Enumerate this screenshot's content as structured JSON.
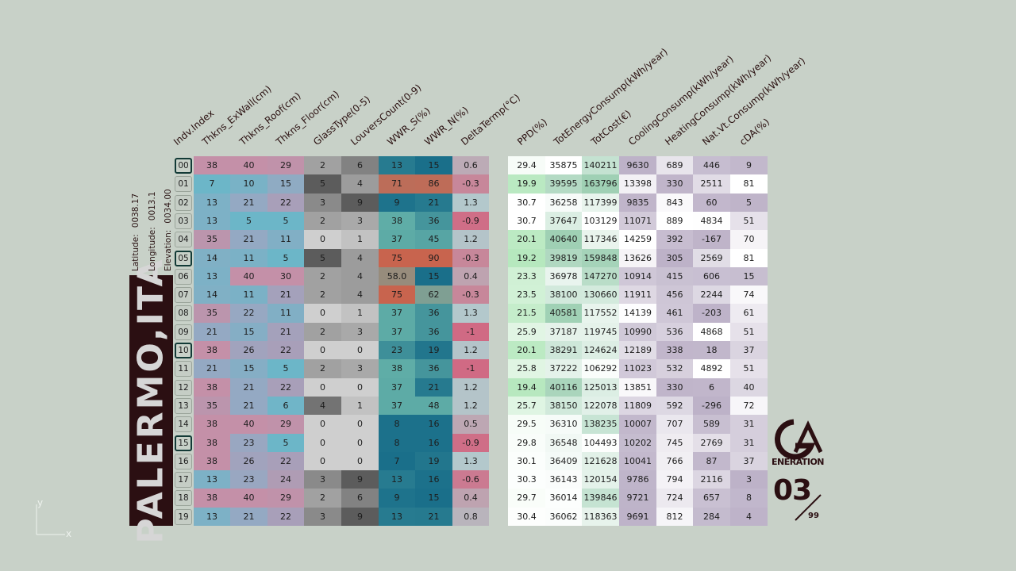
{
  "location": {
    "city": "PALERMO,ITA",
    "latitude_label": "Latitude:",
    "latitude": "0038.17",
    "longitude_label": "Longitude:",
    "longitude": "0013.1",
    "elevation_label": "Elevation:",
    "elevation": "0034.00"
  },
  "branding": {
    "logo_text": "ENERATION",
    "generation": "03",
    "generation_total": "99"
  },
  "axes_icon": {
    "x": "x",
    "y": "y"
  },
  "chart_data": {
    "type": "table",
    "columns": [
      "Indv.Index",
      "Thkns_ExWall(cm)",
      "Thkns_Roof(cm)",
      "Thkns_Floor(cm)",
      "GlassType(0-5)",
      "LouversCount(0-9)",
      "WWR_S(%)",
      "WWR_N(%)",
      "DeltaTermp(°C)",
      "PPD(%)",
      "TotEnergyConsump(kWh/year)",
      "TotCost(€)",
      "CoolingConsump(kWh/year)",
      "HeatingConsump(kWh/year)",
      "Nat.Vt.Consump(kWh/year)",
      "cDA(%)"
    ],
    "selected_rows": [
      "00",
      "05",
      "10",
      "15"
    ],
    "rows": [
      [
        "00",
        "38",
        "40",
        "29",
        "2",
        "6",
        "13",
        "15",
        "0.6",
        "29.4",
        "35875",
        "140211",
        "9630",
        "689",
        "446",
        "9"
      ],
      [
        "01",
        "7",
        "10",
        "15",
        "5",
        "4",
        "71",
        "86",
        "-0.3",
        "19.9",
        "39595",
        "163796",
        "13398",
        "330",
        "2511",
        "81"
      ],
      [
        "02",
        "13",
        "21",
        "22",
        "3",
        "9",
        "9",
        "21",
        "1.3",
        "30.7",
        "36258",
        "117399",
        "9835",
        "843",
        "60",
        "5"
      ],
      [
        "03",
        "13",
        "5",
        "5",
        "2",
        "3",
        "38",
        "36",
        "-0.9",
        "30.7",
        "37647",
        "103129",
        "11071",
        "889",
        "4834",
        "51"
      ],
      [
        "04",
        "35",
        "21",
        "11",
        "0",
        "1",
        "37",
        "45",
        "1.2",
        "20.1",
        "40640",
        "117346",
        "14259",
        "392",
        "-167",
        "70"
      ],
      [
        "05",
        "14",
        "11",
        "5",
        "5",
        "4",
        "75",
        "90",
        "-0.3",
        "19.2",
        "39819",
        "159848",
        "13626",
        "305",
        "2569",
        "81"
      ],
      [
        "06",
        "13",
        "40",
        "30",
        "2",
        "4",
        "58.0",
        "15",
        "0.4",
        "23.3",
        "36978",
        "147270",
        "10914",
        "415",
        "606",
        "15"
      ],
      [
        "07",
        "14",
        "11",
        "21",
        "2",
        "4",
        "75",
        "62",
        "-0.3",
        "23.5",
        "38100",
        "130660",
        "11911",
        "456",
        "2244",
        "74"
      ],
      [
        "08",
        "35",
        "22",
        "11",
        "0",
        "1",
        "37",
        "36",
        "1.3",
        "21.5",
        "40581",
        "117552",
        "14139",
        "461",
        "-203",
        "61"
      ],
      [
        "09",
        "21",
        "15",
        "21",
        "2",
        "3",
        "37",
        "36",
        "-1",
        "25.9",
        "37187",
        "119745",
        "10990",
        "536",
        "4868",
        "51"
      ],
      [
        "10",
        "38",
        "26",
        "22",
        "0",
        "0",
        "23",
        "19",
        "1.2",
        "20.1",
        "38291",
        "124624",
        "12189",
        "338",
        "18",
        "37"
      ],
      [
        "11",
        "21",
        "15",
        "5",
        "2",
        "3",
        "38",
        "36",
        "-1",
        "25.8",
        "37222",
        "106292",
        "11023",
        "532",
        "4892",
        "51"
      ],
      [
        "12",
        "38",
        "21",
        "22",
        "0",
        "0",
        "37",
        "21",
        "1.2",
        "19.4",
        "40116",
        "125013",
        "13851",
        "330",
        "6",
        "40"
      ],
      [
        "13",
        "35",
        "21",
        "6",
        "4",
        "1",
        "37",
        "48",
        "1.2",
        "25.7",
        "38150",
        "122078",
        "11809",
        "592",
        "-296",
        "72"
      ],
      [
        "14",
        "38",
        "40",
        "29",
        "0",
        "0",
        "8",
        "16",
        "0.5",
        "29.5",
        "36310",
        "138235",
        "10007",
        "707",
        "589",
        "31"
      ],
      [
        "15",
        "38",
        "23",
        "5",
        "0",
        "0",
        "8",
        "16",
        "-0.9",
        "29.8",
        "36548",
        "104493",
        "10202",
        "745",
        "2769",
        "31"
      ],
      [
        "16",
        "38",
        "26",
        "22",
        "0",
        "0",
        "7",
        "19",
        "1.3",
        "30.1",
        "36409",
        "121628",
        "10041",
        "766",
        "87",
        "37"
      ],
      [
        "17",
        "13",
        "23",
        "24",
        "3",
        "9",
        "13",
        "16",
        "-0.6",
        "30.3",
        "36143",
        "120154",
        "9786",
        "794",
        "2116",
        "3"
      ],
      [
        "18",
        "38",
        "40",
        "29",
        "2",
        "6",
        "9",
        "15",
        "0.4",
        "29.7",
        "36014",
        "139846",
        "9721",
        "724",
        "657",
        "8"
      ],
      [
        "19",
        "13",
        "21",
        "22",
        "3",
        "9",
        "13",
        "21",
        "0.8",
        "30.4",
        "36062",
        "118363",
        "9691",
        "812",
        "284",
        "4"
      ]
    ],
    "colors": {
      "thickness_high": "#c490a8",
      "thickness_mid": "#98a8c2",
      "thickness_low": "#6cb6c8",
      "glass_dark": "#5c5c5c",
      "glass_light": "#cfcfcf",
      "wwr_low": "#1a6f8a",
      "wwr_mid": "#66b3aa",
      "wwr_high": "#c8644e",
      "delta_neg": "#d06a84",
      "delta_pos": "#b3c8cc",
      "ppd_low": "#b6e8be",
      "ppd_high": "#ffffff",
      "energy_low": "#ffffff",
      "energy_high": "#9fd0b4",
      "cons_low": "#bdb2c8",
      "cons_high": "#ffffff"
    }
  }
}
